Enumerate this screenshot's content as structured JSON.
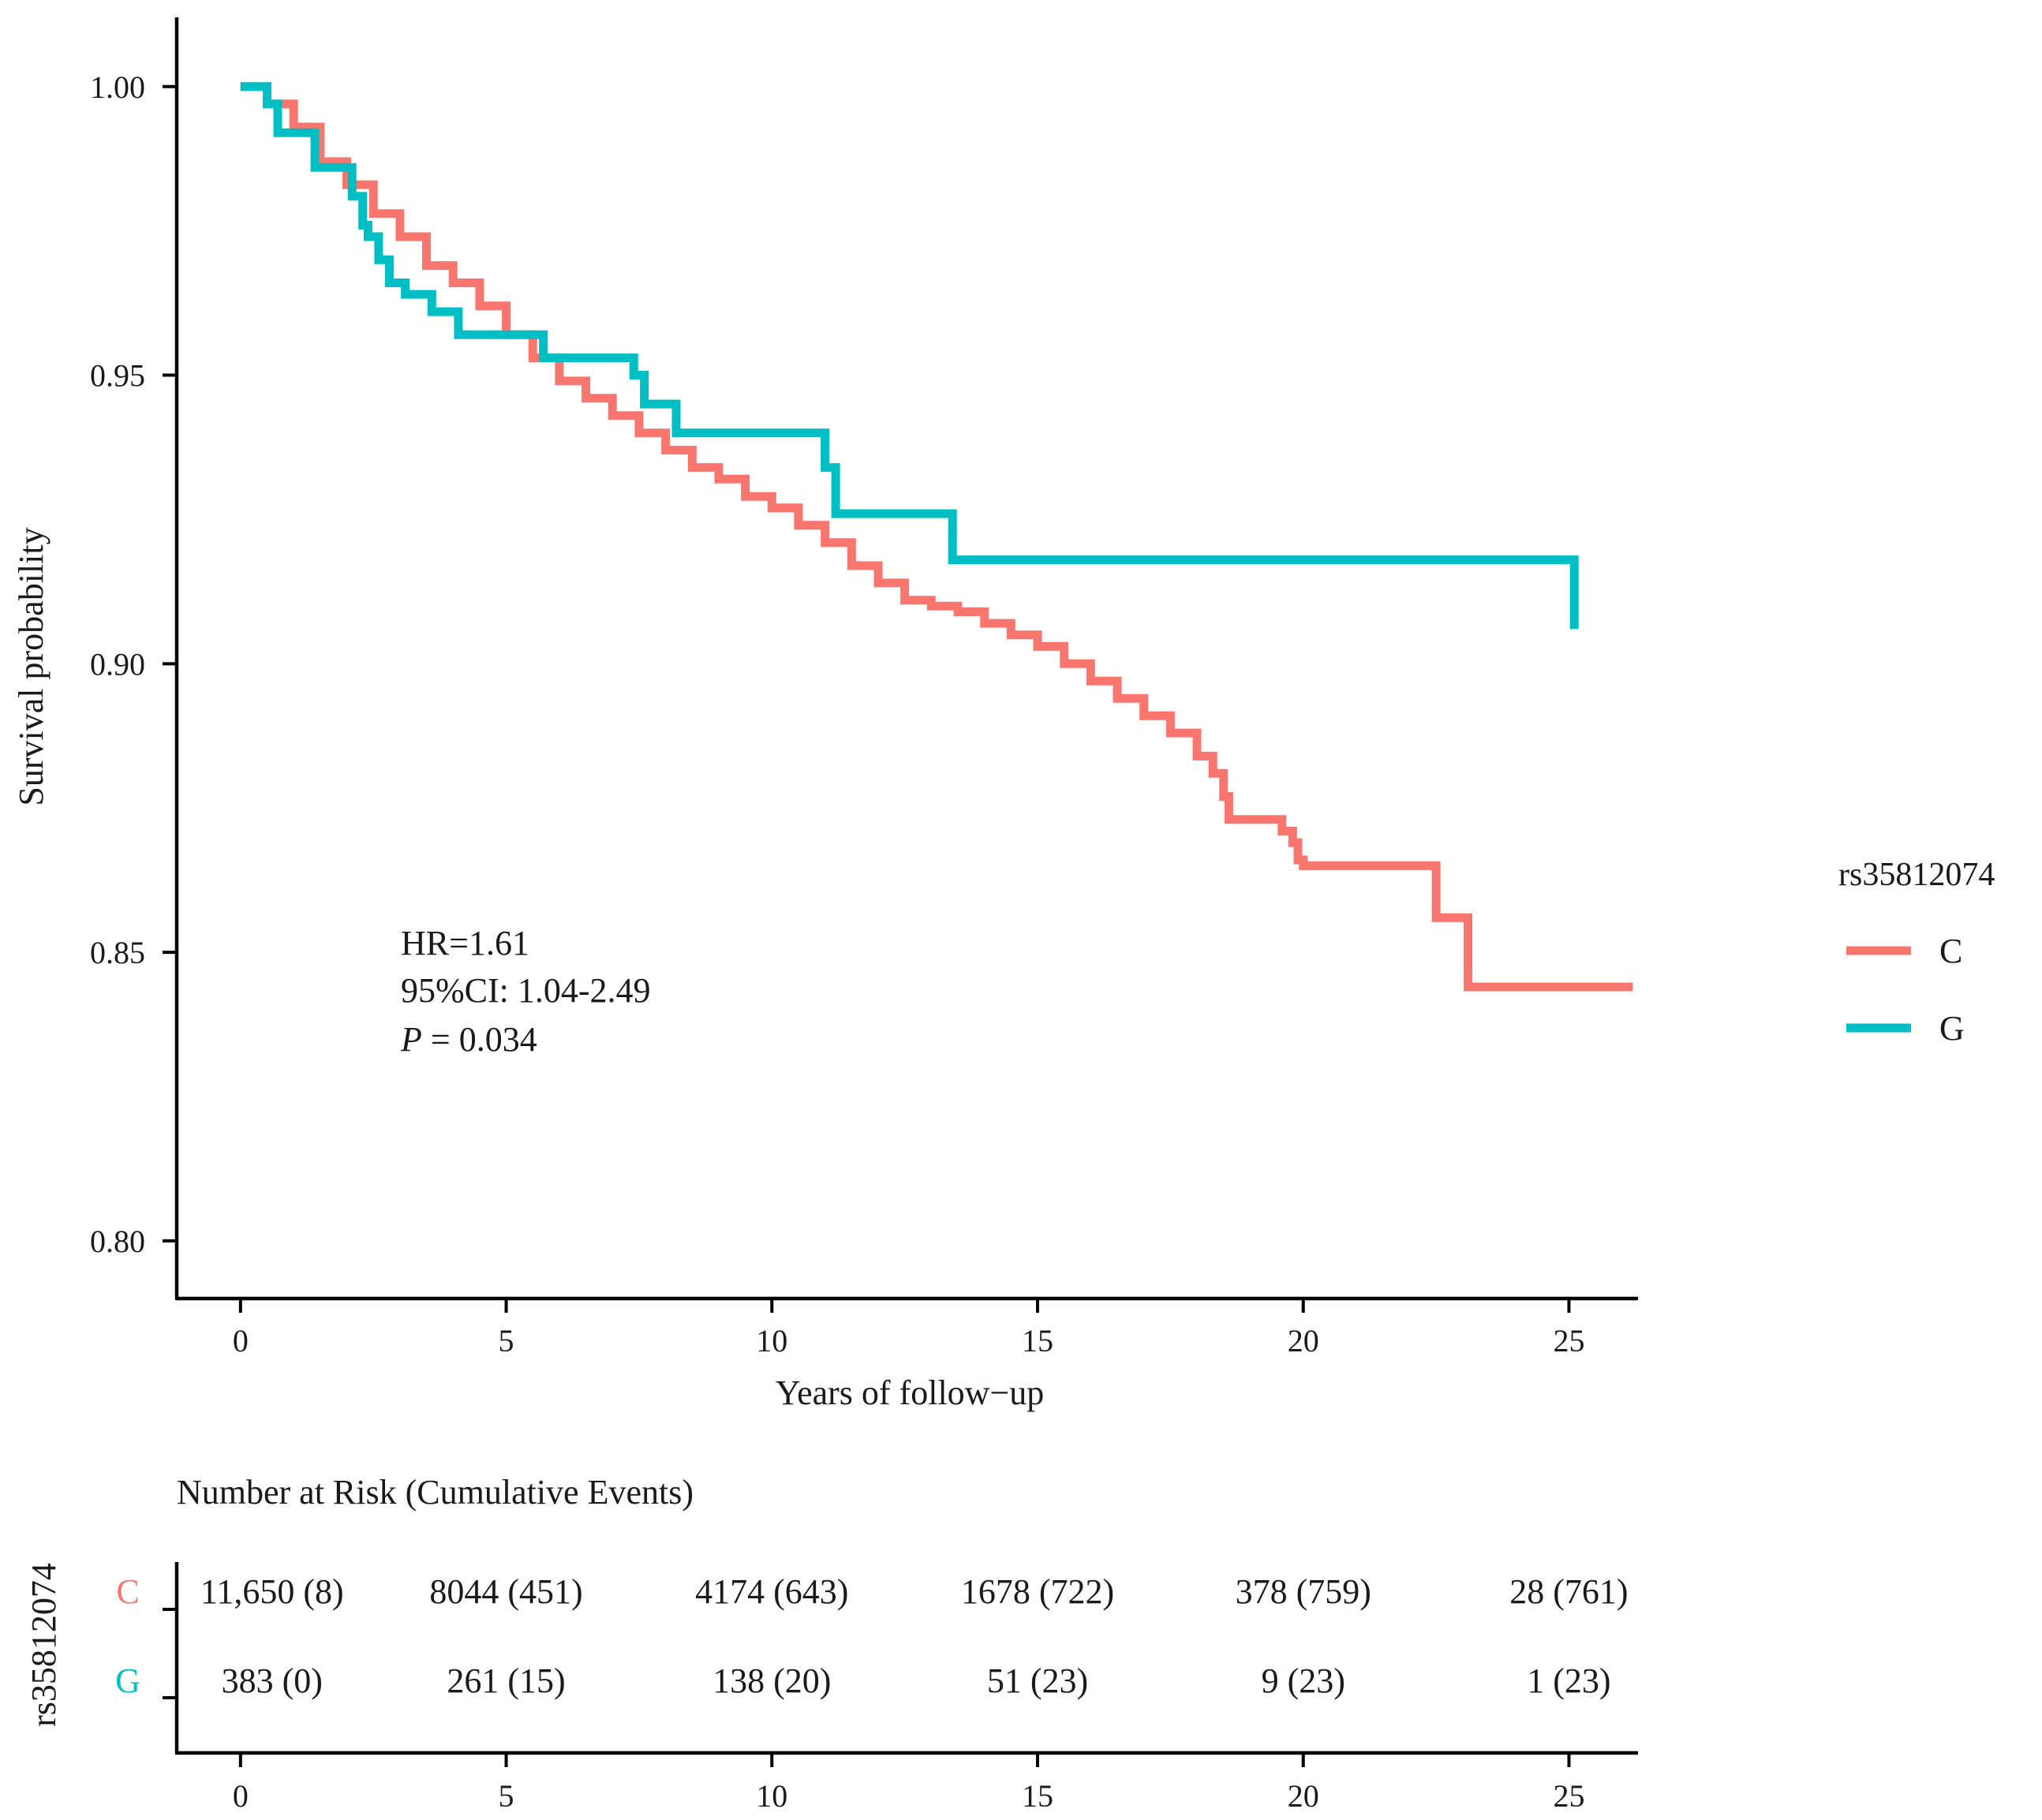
{
  "chart_data": {
    "type": "line",
    "subtype": "kaplan-meier",
    "title": "",
    "xlabel": "Years of follow−up",
    "ylabel": "Survival probability",
    "xlim": [
      -1.2,
      26.3
    ],
    "ylim": [
      0.79,
      1.012
    ],
    "x_ticks": [
      0,
      5,
      10,
      15,
      20,
      25
    ],
    "y_ticks": [
      0.8,
      0.85,
      0.9,
      0.95,
      1.0
    ],
    "y_tick_labels": [
      "0.80",
      "0.85",
      "0.90",
      "0.95",
      "1.00"
    ],
    "grid": false,
    "legend": {
      "title": "rs35812074",
      "position": "right",
      "entries": [
        {
          "label": "C",
          "color": "#F8766D"
        },
        {
          "label": "G",
          "color": "#00BFC4"
        }
      ]
    },
    "annotation": {
      "hr": "HR=1.61",
      "ci": "95%CI: 1.04-2.49",
      "p_symbol": "P",
      "p_value": " = 0.034"
    },
    "series": [
      {
        "name": "C",
        "color": "#F8766D",
        "x": [
          0,
          0.5,
          1.0,
          1.5,
          2.0,
          2.5,
          3.0,
          3.5,
          4.0,
          4.5,
          5.0,
          5.5,
          6.0,
          6.5,
          7.0,
          7.5,
          8.0,
          8.5,
          9.0,
          9.5,
          10.0,
          10.5,
          11.0,
          11.5,
          12.0,
          12.5,
          13.0,
          13.5,
          14.0,
          14.5,
          15.0,
          15.5,
          16.0,
          16.5,
          17.0,
          17.5,
          18.0,
          18.3,
          18.5,
          18.6,
          19.3,
          19.6,
          19.8,
          19.9,
          20.0,
          22.5,
          22.5,
          23.1,
          23.1,
          26.2
        ],
        "y": [
          1.0,
          0.997,
          0.993,
          0.987,
          0.983,
          0.978,
          0.974,
          0.969,
          0.966,
          0.962,
          0.957,
          0.953,
          0.949,
          0.946,
          0.943,
          0.94,
          0.937,
          0.934,
          0.932,
          0.929,
          0.927,
          0.924,
          0.921,
          0.917,
          0.914,
          0.911,
          0.91,
          0.909,
          0.907,
          0.905,
          0.903,
          0.9,
          0.897,
          0.894,
          0.891,
          0.888,
          0.884,
          0.881,
          0.877,
          0.873,
          0.873,
          0.871,
          0.869,
          0.866,
          0.865,
          0.865,
          0.856,
          0.856,
          0.844,
          0.844
        ]
      },
      {
        "name": "G",
        "color": "#00BFC4",
        "x": [
          0,
          0.5,
          0.7,
          1.3,
          1.4,
          2.0,
          2.1,
          2.3,
          2.4,
          2.6,
          2.8,
          3.1,
          3.6,
          4.1,
          5.2,
          5.7,
          7.4,
          7.6,
          8.2,
          11.0,
          11.2,
          13.4,
          25.1
        ],
        "y": [
          1.0,
          0.997,
          0.992,
          0.992,
          0.986,
          0.986,
          0.981,
          0.976,
          0.974,
          0.97,
          0.966,
          0.964,
          0.961,
          0.957,
          0.957,
          0.953,
          0.95,
          0.945,
          0.94,
          0.934,
          0.926,
          0.918,
          0.906
        ]
      }
    ]
  },
  "risk_table": {
    "title": "Number at Risk (Cumulative Events)",
    "ylabel": "rs35812074",
    "x_ticks": [
      0,
      5,
      10,
      15,
      20,
      25
    ],
    "rows": [
      {
        "group": "C",
        "color": "#F8766D",
        "cells": [
          "11,650 (8)",
          "8044 (451)",
          "4174 (643)",
          "1678 (722)",
          "378 (759)",
          "28 (761)"
        ]
      },
      {
        "group": "G",
        "color": "#00BFC4",
        "cells": [
          "383 (0)",
          "261 (15)",
          "138 (20)",
          "51 (23)",
          "9 (23)",
          "1 (23)"
        ]
      }
    ]
  }
}
